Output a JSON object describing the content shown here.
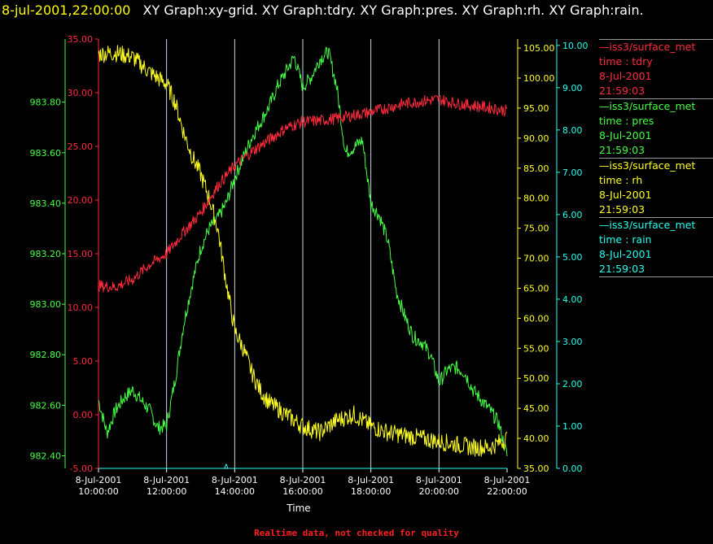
{
  "header": {
    "date": "8-jul-2001,22:00:00",
    "titles": "XY Graph:xy-grid.  XY Graph:tdry.  XY Graph:pres.  XY Graph:rh.  XY Graph:rain."
  },
  "footer": {
    "note": "Realtime data, not checked for quality"
  },
  "colors": {
    "tdry": "#ff2a3c",
    "pres": "#44ff44",
    "rh": "#ffff22",
    "rain": "#22ffee",
    "grid": "#d8f0ff",
    "axis_text": "#ffffff"
  },
  "legend": [
    {
      "name": "—iss3/surface_met",
      "var": "time : tdry",
      "date": "8-Jul-2001",
      "time": "21:59:03",
      "color": "#ff2a3c"
    },
    {
      "name": "—iss3/surface_met",
      "var": "time : pres",
      "date": "8-Jul-2001",
      "time": "21:59:03",
      "color": "#44ff44"
    },
    {
      "name": "—iss3/surface_met",
      "var": "time : rh",
      "date": "8-Jul-2001",
      "time": "21:59:03",
      "color": "#ffff22"
    },
    {
      "name": "—iss3/surface_met",
      "var": "time : rain",
      "date": "8-Jul-2001",
      "time": "21:59:03",
      "color": "#22ffee"
    }
  ],
  "chart_data": {
    "type": "line",
    "xlabel": "Time",
    "x_ticks": [
      {
        "t": 10,
        "date": "8-Jul-2001",
        "time": "10:00:00"
      },
      {
        "t": 12,
        "date": "8-Jul-2001",
        "time": "12:00:00"
      },
      {
        "t": 14,
        "date": "8-Jul-2001",
        "time": "14:00:00"
      },
      {
        "t": 16,
        "date": "8-Jul-2001",
        "time": "16:00:00"
      },
      {
        "t": 18,
        "date": "8-Jul-2001",
        "time": "18:00:00"
      },
      {
        "t": 20,
        "date": "8-Jul-2001",
        "time": "20:00:00"
      },
      {
        "t": 22,
        "date": "8-Jul-2001",
        "time": "22:00:00"
      }
    ],
    "xlim": [
      10,
      22
    ],
    "axes": {
      "pres": {
        "ylim": [
          982.35,
          984.05
        ],
        "ticks": [
          "983.80",
          "983.60",
          "983.40",
          "983.20",
          "983.00",
          "982.80",
          "982.60",
          "982.40"
        ],
        "tick_values": [
          983.8,
          983.6,
          983.4,
          983.2,
          983.0,
          982.8,
          982.6,
          982.4
        ]
      },
      "tdry": {
        "ylim": [
          -5,
          35
        ],
        "ticks": [
          "35.00",
          "30.00",
          "25.00",
          "20.00",
          "15.00",
          "10.00",
          "5.00",
          "0.00",
          "-5.00"
        ],
        "tick_values": [
          35,
          30,
          25,
          20,
          15,
          10,
          5,
          0,
          -5
        ]
      },
      "rh": {
        "ylim": [
          35,
          106.5
        ],
        "ticks": [
          "105.00",
          "100.00",
          "95.00",
          "90.00",
          "85.00",
          "80.00",
          "75.00",
          "70.00",
          "65.00",
          "60.00",
          "55.00",
          "50.00",
          "45.00",
          "40.00",
          "35.00"
        ],
        "tick_values": [
          105,
          100,
          95,
          90,
          85,
          80,
          75,
          70,
          65,
          60,
          55,
          50,
          45,
          40,
          35
        ]
      },
      "rain": {
        "ylim": [
          0,
          10.15
        ],
        "ticks": [
          "10.00",
          "9.00",
          "8.00",
          "7.00",
          "6.00",
          "5.00",
          "4.00",
          "3.00",
          "2.00",
          "1.00",
          "0.00"
        ],
        "tick_values": [
          10,
          9,
          8,
          7,
          6,
          5,
          4,
          3,
          2,
          1,
          0
        ]
      }
    },
    "series": [
      {
        "name": "tdry",
        "values": [
          [
            10.0,
            12.0
          ],
          [
            10.5,
            11.9
          ],
          [
            11.0,
            12.6
          ],
          [
            11.5,
            14.0
          ],
          [
            12.0,
            15.0
          ],
          [
            12.5,
            17.0
          ],
          [
            13.0,
            18.8
          ],
          [
            13.5,
            21.3
          ],
          [
            14.0,
            23.2
          ],
          [
            14.5,
            24.5
          ],
          [
            15.0,
            25.6
          ],
          [
            15.5,
            26.7
          ],
          [
            16.0,
            27.3
          ],
          [
            16.5,
            27.4
          ],
          [
            17.0,
            27.6
          ],
          [
            17.5,
            27.9
          ],
          [
            18.0,
            28.2
          ],
          [
            18.5,
            28.6
          ],
          [
            19.0,
            29.0
          ],
          [
            19.5,
            29.2
          ],
          [
            20.0,
            29.4
          ],
          [
            20.5,
            29.0
          ],
          [
            21.0,
            28.8
          ],
          [
            21.5,
            28.6
          ],
          [
            22.0,
            28.3
          ]
        ]
      },
      {
        "name": "pres",
        "values": [
          [
            10.0,
            982.62
          ],
          [
            10.25,
            982.49
          ],
          [
            10.5,
            982.58
          ],
          [
            10.75,
            982.63
          ],
          [
            11.0,
            982.66
          ],
          [
            11.25,
            982.62
          ],
          [
            11.5,
            982.58
          ],
          [
            11.75,
            982.51
          ],
          [
            12.0,
            982.52
          ],
          [
            12.25,
            982.7
          ],
          [
            12.5,
            982.92
          ],
          [
            12.75,
            983.08
          ],
          [
            13.0,
            983.22
          ],
          [
            13.25,
            983.3
          ],
          [
            13.5,
            983.34
          ],
          [
            13.75,
            983.4
          ],
          [
            14.0,
            983.5
          ],
          [
            14.25,
            983.58
          ],
          [
            14.5,
            983.66
          ],
          [
            14.75,
            983.72
          ],
          [
            15.0,
            983.78
          ],
          [
            15.25,
            983.86
          ],
          [
            15.5,
            983.92
          ],
          [
            15.75,
            983.98
          ],
          [
            16.0,
            983.86
          ],
          [
            16.25,
            983.9
          ],
          [
            16.5,
            983.97
          ],
          [
            16.75,
            984.0
          ],
          [
            17.0,
            983.86
          ],
          [
            17.25,
            983.6
          ],
          [
            17.5,
            983.62
          ],
          [
            17.75,
            983.65
          ],
          [
            18.0,
            983.4
          ],
          [
            18.25,
            983.35
          ],
          [
            18.5,
            983.25
          ],
          [
            18.75,
            983.05
          ],
          [
            19.0,
            982.95
          ],
          [
            19.25,
            982.87
          ],
          [
            19.5,
            982.85
          ],
          [
            19.75,
            982.8
          ],
          [
            20.0,
            982.69
          ],
          [
            20.25,
            982.74
          ],
          [
            20.5,
            982.75
          ],
          [
            20.75,
            982.73
          ],
          [
            21.0,
            982.66
          ],
          [
            21.25,
            982.62
          ],
          [
            21.5,
            982.58
          ],
          [
            21.75,
            982.53
          ],
          [
            22.0,
            982.4
          ]
        ]
      },
      {
        "name": "rh",
        "values": [
          [
            10.0,
            104.0
          ],
          [
            10.5,
            104.2
          ],
          [
            11.0,
            103.5
          ],
          [
            11.5,
            101.0
          ],
          [
            12.0,
            99.0
          ],
          [
            12.25,
            96.0
          ],
          [
            12.5,
            91.0
          ],
          [
            12.75,
            87.0
          ],
          [
            13.0,
            84.0
          ],
          [
            13.25,
            80.0
          ],
          [
            13.5,
            75.0
          ],
          [
            13.75,
            66.0
          ],
          [
            14.0,
            58.0
          ],
          [
            14.25,
            55.0
          ],
          [
            14.5,
            51.0
          ],
          [
            14.75,
            48.0
          ],
          [
            15.0,
            46.0
          ],
          [
            15.5,
            44.0
          ],
          [
            16.0,
            42.0
          ],
          [
            16.5,
            41.0
          ],
          [
            17.0,
            43.0
          ],
          [
            17.5,
            44.0
          ],
          [
            18.0,
            42.0
          ],
          [
            18.5,
            41.0
          ],
          [
            19.0,
            40.5
          ],
          [
            19.5,
            40.0
          ],
          [
            20.0,
            39.5
          ],
          [
            20.5,
            39.0
          ],
          [
            21.0,
            38.5
          ],
          [
            21.5,
            38.5
          ],
          [
            22.0,
            40.0
          ]
        ]
      },
      {
        "name": "rain",
        "values": [
          [
            10.0,
            0.0
          ],
          [
            13.7,
            0.0
          ],
          [
            13.75,
            0.1
          ],
          [
            13.8,
            0.0
          ],
          [
            22.0,
            0.0
          ]
        ]
      }
    ]
  }
}
